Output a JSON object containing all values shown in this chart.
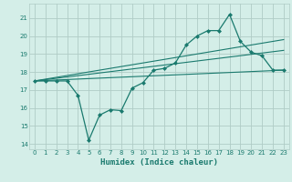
{
  "xlabel": "Humidex (Indice chaleur)",
  "background_color": "#d4eee8",
  "grid_color": "#b0ccc6",
  "line_color": "#1a7a6e",
  "xlim": [
    -0.5,
    23.5
  ],
  "ylim": [
    13.7,
    21.8
  ],
  "xticks": [
    0,
    1,
    2,
    3,
    4,
    5,
    6,
    7,
    8,
    9,
    10,
    11,
    12,
    13,
    14,
    15,
    16,
    17,
    18,
    19,
    20,
    21,
    22,
    23
  ],
  "yticks": [
    14,
    15,
    16,
    17,
    18,
    19,
    20,
    21
  ],
  "curve1_x": [
    0,
    1,
    2,
    3,
    4,
    5,
    6,
    7,
    8,
    9,
    10,
    11,
    12,
    13,
    14,
    15,
    16,
    17,
    18,
    19,
    20,
    21,
    22,
    23
  ],
  "curve1_y": [
    17.5,
    17.5,
    17.5,
    17.5,
    16.7,
    14.2,
    15.6,
    15.9,
    15.85,
    17.1,
    17.4,
    18.1,
    18.2,
    18.5,
    19.5,
    20.0,
    20.3,
    20.3,
    21.2,
    19.7,
    19.1,
    18.9,
    18.1,
    18.1
  ],
  "curve2_x": [
    0,
    23
  ],
  "curve2_y": [
    17.5,
    18.1
  ],
  "curve3_x": [
    0,
    23
  ],
  "curve3_y": [
    17.5,
    19.2
  ],
  "curve4_x": [
    0,
    23
  ],
  "curve4_y": [
    17.5,
    19.8
  ]
}
